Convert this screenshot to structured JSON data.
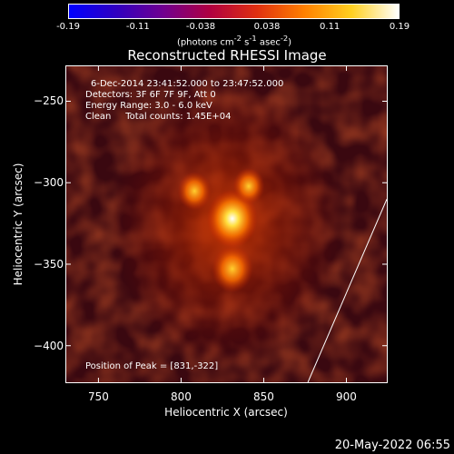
{
  "colorbar": {
    "ticks": [
      "-0.19",
      "-0.11",
      "-0.038",
      "0.038",
      "0.11",
      "0.19"
    ],
    "tick_values": [
      -0.19,
      -0.11,
      -0.038,
      0.038,
      0.11,
      0.19
    ],
    "range": [
      -0.19,
      0.19
    ],
    "units_prefix": "(photons cm",
    "units_exp1": "-2",
    "units_mid1": " s",
    "units_exp2": "-1",
    "units_mid2": " asec",
    "units_exp3": "-2",
    "units_suffix": ")",
    "colormap": [
      "#0000ff",
      "#3000c0",
      "#700090",
      "#b00040",
      "#e03010",
      "#ff8000",
      "#ffd020",
      "#ffffff"
    ]
  },
  "chart_data": {
    "type": "heatmap",
    "title": "Reconstructed RHESSI Image",
    "xlabel": "Heliocentric X (arcsec)",
    "ylabel": "Heliocentric Y (arcsec)",
    "xlim": [
      730,
      925
    ],
    "ylim": [
      -423,
      -228
    ],
    "xticks": [
      750,
      800,
      850,
      900
    ],
    "yticks": [
      -250,
      -300,
      -350,
      -400
    ],
    "info_lines": [
      "6-Dec-2014 23:41:52.000 to 23:47:52.000",
      "Detectors: 3F 6F 7F 9F, Att 0",
      "Energy Range: 3.0 - 6.0 keV",
      "Clean     Total counts: 1.45E+04"
    ],
    "peak_text": "Position of Peak = [831,-322]",
    "sources": [
      {
        "x": 831,
        "y": -322,
        "value": 0.19
      },
      {
        "x": 831,
        "y": -353,
        "value": 0.14
      },
      {
        "x": 808,
        "y": -305,
        "value": 0.1
      },
      {
        "x": 841,
        "y": -302,
        "value": 0.09
      }
    ],
    "limb_line": [
      [
        877,
        -423
      ],
      [
        925,
        -310
      ]
    ]
  },
  "footer": {
    "timestamp": "20-May-2022 06:55"
  }
}
